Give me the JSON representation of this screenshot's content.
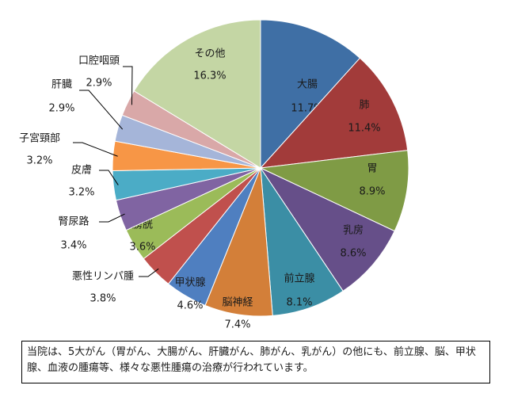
{
  "chart_data": {
    "type": "pie",
    "categories": [
      "大腸",
      "肺",
      "胃",
      "乳房",
      "前立腺",
      "脳神経",
      "甲状腺",
      "悪性リンパ腫",
      "膀胱",
      "腎尿路",
      "皮膚",
      "子宮頸部",
      "肝臓",
      "口腔咽頭",
      "その他"
    ],
    "values": [
      11.7,
      11.4,
      8.9,
      8.6,
      8.1,
      7.4,
      4.6,
      3.8,
      3.6,
      3.4,
      3.2,
      3.2,
      2.9,
      2.9,
      16.3
    ],
    "value_labels": [
      "11.7%",
      "11.4%",
      "8.9%",
      "8.6%",
      "8.1%",
      "7.4%",
      "4.6%",
      "3.8%",
      "3.6%",
      "3.4%",
      "3.2%",
      "3.2%",
      "2.9%",
      "2.9%",
      "16.3%"
    ],
    "colors": [
      "#3F6FA5",
      "#A23B3A",
      "#7F9B45",
      "#664F89",
      "#3B8EA5",
      "#D37F39",
      "#4F7FC0",
      "#C0504D",
      "#9BBB59",
      "#8064A2",
      "#4BACC6",
      "#F79646",
      "#A5B5D9",
      "#D9A8A8",
      "#C4D6A4"
    ],
    "note": "当院は、5大がん（胃がん、大腸がん、肝臓がん、肺がん、乳がん）の他にも、前立腺、脳、甲状腺、血液の腫瘍等、様々な悪性腫瘍の治療が行われています。"
  }
}
